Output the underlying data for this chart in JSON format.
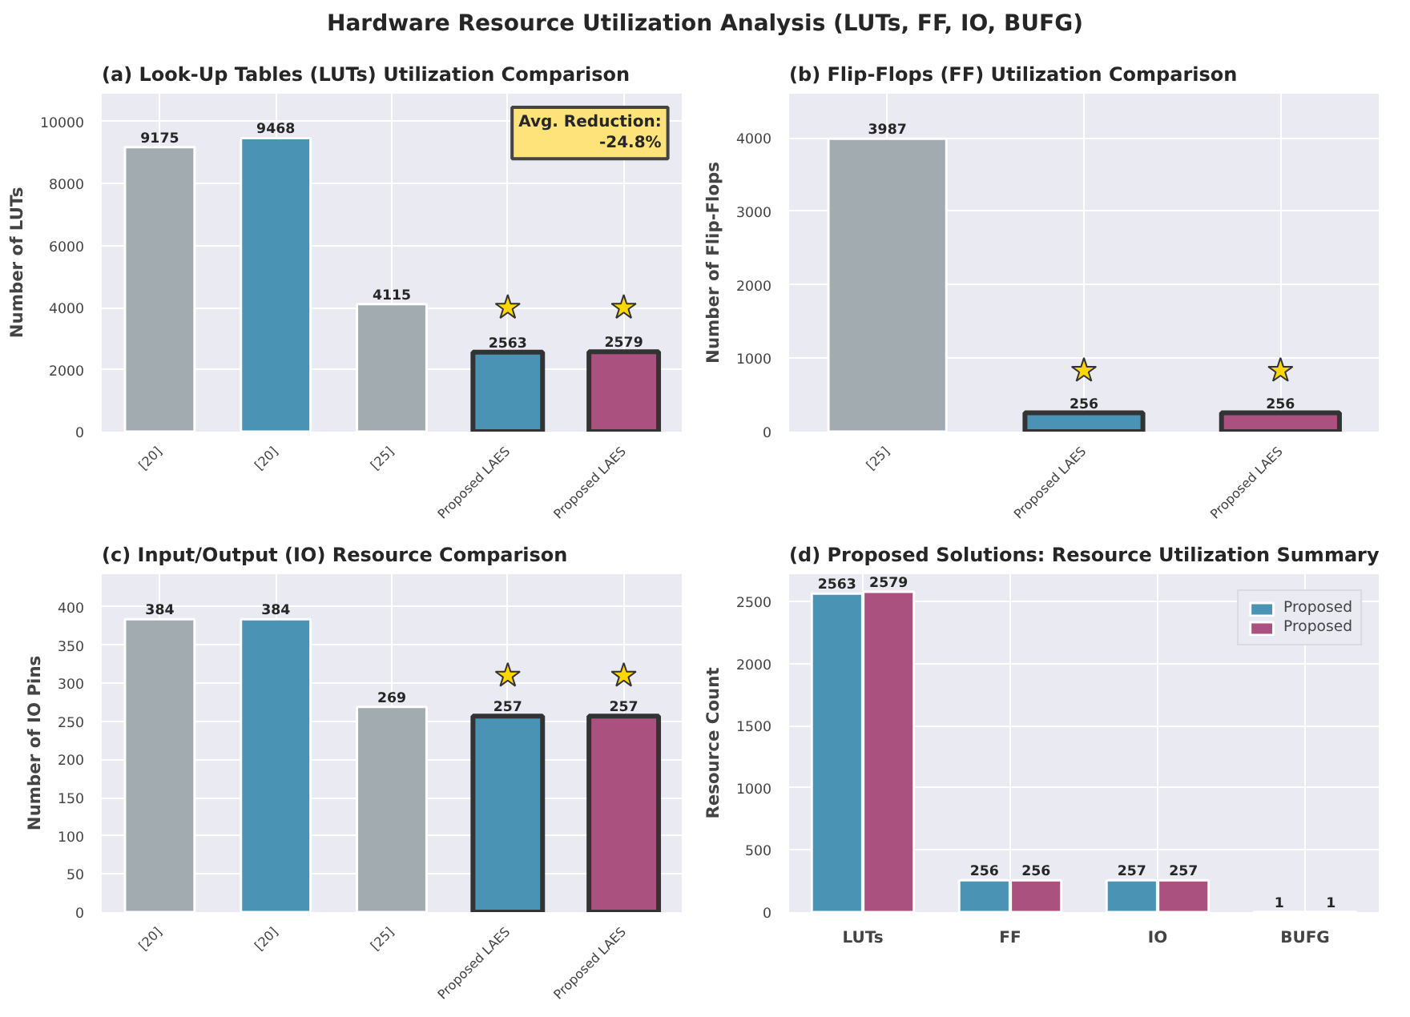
{
  "chart_data": [
    {
      "type": "other",
      "title": "Hardware Resource Utilization Analysis (LUTs, FF, IO, BUFG)"
    },
    {
      "type": "bar",
      "title": "(a) Look-Up Tables (LUTs) Utilization Comparison",
      "ylabel": "Number of LUTs",
      "categories": [
        "[20]",
        "[20]",
        "[25]",
        "Proposed LAES",
        "Proposed LAES"
      ],
      "series": [
        {
          "colors": [
            "#a2acb0",
            "#4a93b5",
            "#a2acb0",
            "#4a93b5",
            "#ab5180"
          ],
          "values": [
            9175,
            9468,
            4115,
            null,
            null
          ]
        },
        {
          "colors": [
            "#a2acb0",
            "#4a93b5",
            "#a2acb0",
            "#4a93b5",
            "#ab5180"
          ],
          "values": [
            null,
            null,
            null,
            2563,
            2579
          ]
        },
        {
          "type": "scatter",
          "color": "#ffd700",
          "values": [
            null,
            null,
            null,
            4000,
            4000
          ],
          "value_labels": [
            null,
            null,
            null,
            null,
            null
          ],
          "marker": "star"
        }
      ],
      "ylim": [
        0,
        10900
      ],
      "yticks": [
        0,
        2000,
        4000,
        6000,
        8000,
        10000
      ],
      "grid": true,
      "data_labels": true,
      "annotations": [
        "Avg. Reduction:\n-24.8%"
      ]
    },
    {
      "type": "bar",
      "title": "(b) Flip-Flops (FF) Utilization Comparison",
      "ylabel": "Number of Flip-Flops",
      "categories": [
        "[25]",
        "Proposed LAES",
        "Proposed LAES"
      ],
      "series": [
        {
          "colors": [
            "#a2acb0",
            "#4a93b5",
            "#ab5180"
          ],
          "values": [
            3987,
            null,
            null
          ]
        },
        {
          "colors": [
            "#a2acb0",
            "#4a93b5",
            "#ab5180"
          ],
          "values": [
            null,
            256,
            256
          ]
        },
        {
          "type": "scatter",
          "color": "#ffd700",
          "values": [
            null,
            830,
            830
          ],
          "value_labels": [
            null,
            null,
            null
          ],
          "marker": "star"
        }
      ],
      "ylim": [
        0,
        4600
      ],
      "yticks": [
        0,
        1000,
        2000,
        3000,
        4000
      ],
      "grid": true,
      "data_labels": true
    },
    {
      "type": "bar",
      "title": "(c) Input/Output (IO) Resource Comparison",
      "ylabel": "Number of IO Pins",
      "categories": [
        "[20]",
        "[20]",
        "[25]",
        "Proposed LAES",
        "Proposed LAES"
      ],
      "series": [
        {
          "colors": [
            "#a2acb0",
            "#4a93b5",
            "#a2acb0",
            "#4a93b5",
            "#ab5180"
          ],
          "values": [
            384,
            384,
            269,
            null,
            null
          ]
        },
        {
          "colors": [
            "#a2acb0",
            "#4a93b5",
            "#a2acb0",
            "#4a93b5",
            "#ab5180"
          ],
          "values": [
            null,
            null,
            null,
            257,
            257
          ]
        },
        {
          "type": "scatter",
          "color": "#ffd700",
          "values": [
            null,
            null,
            null,
            310,
            310
          ],
          "value_labels": [
            null,
            null,
            null,
            null,
            null
          ],
          "marker": "star"
        }
      ],
      "ylim": [
        0,
        443
      ],
      "yticks": [
        0,
        50,
        100,
        150,
        200,
        250,
        300,
        350,
        400
      ],
      "grid": true,
      "data_labels": true
    },
    {
      "type": "bar",
      "title": "(d) Proposed Solutions: Resource Utilization Summary",
      "ylabel": "Resource Count",
      "categories": [
        "LUTs",
        "FF",
        "IO",
        "BUFG"
      ],
      "series": [
        {
          "name": "Proposed",
          "color": "#4a93b5",
          "values": [
            2563,
            256,
            257,
            1
          ]
        },
        {
          "name": "Proposed",
          "color": "#ab5180",
          "values": [
            2579,
            256,
            257,
            1
          ]
        }
      ],
      "ylim": [
        0,
        2720
      ],
      "yticks": [
        0,
        500,
        1000,
        1500,
        2000,
        2500
      ],
      "grid": true,
      "data_labels": true,
      "legend": "top right"
    }
  ]
}
